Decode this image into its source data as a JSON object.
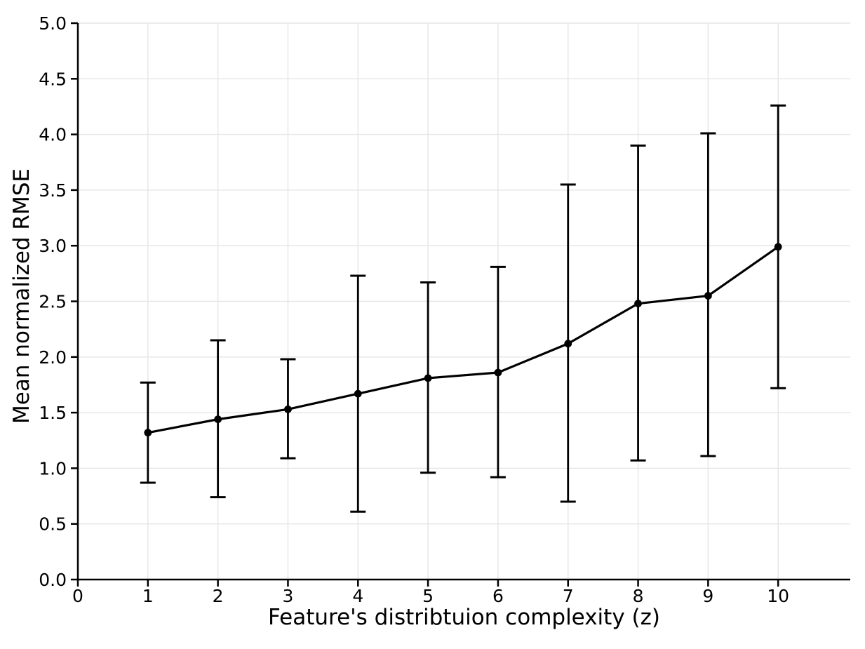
{
  "chart_data": {
    "type": "line",
    "title": "",
    "xlabel": "Feature's distribtuion complexity (z)",
    "ylabel": "Mean normalized RMSE",
    "x": [
      1,
      2,
      3,
      4,
      5,
      6,
      7,
      8,
      9,
      10
    ],
    "series": [
      {
        "name": "Mean normalized RMSE",
        "values": [
          1.32,
          1.44,
          1.53,
          1.67,
          1.81,
          1.86,
          2.12,
          2.48,
          2.55,
          2.99
        ],
        "error_upper": [
          1.77,
          2.15,
          1.98,
          2.73,
          2.67,
          2.81,
          3.55,
          3.9,
          4.01,
          4.26
        ],
        "error_lower": [
          0.87,
          0.74,
          1.09,
          0.61,
          0.96,
          0.92,
          0.7,
          1.07,
          1.11,
          1.72
        ]
      }
    ],
    "xlim": [
      0,
      11.03
    ],
    "ylim": [
      0,
      5
    ],
    "xticks": [
      0,
      1,
      2,
      3,
      4,
      5,
      6,
      7,
      8,
      9,
      10
    ],
    "yticks": [
      0.0,
      0.5,
      1.0,
      1.5,
      2.0,
      2.5,
      3.0,
      3.5,
      4.0,
      4.5,
      5.0
    ],
    "grid": true,
    "legend": "none",
    "marker": "circle",
    "colors": {
      "line": "#000000",
      "marker": "#000000",
      "error_bar": "#000000",
      "grid": "#e6e6e6",
      "spine": "#000000",
      "tick_text": "#000000",
      "background": "#ffffff"
    }
  }
}
